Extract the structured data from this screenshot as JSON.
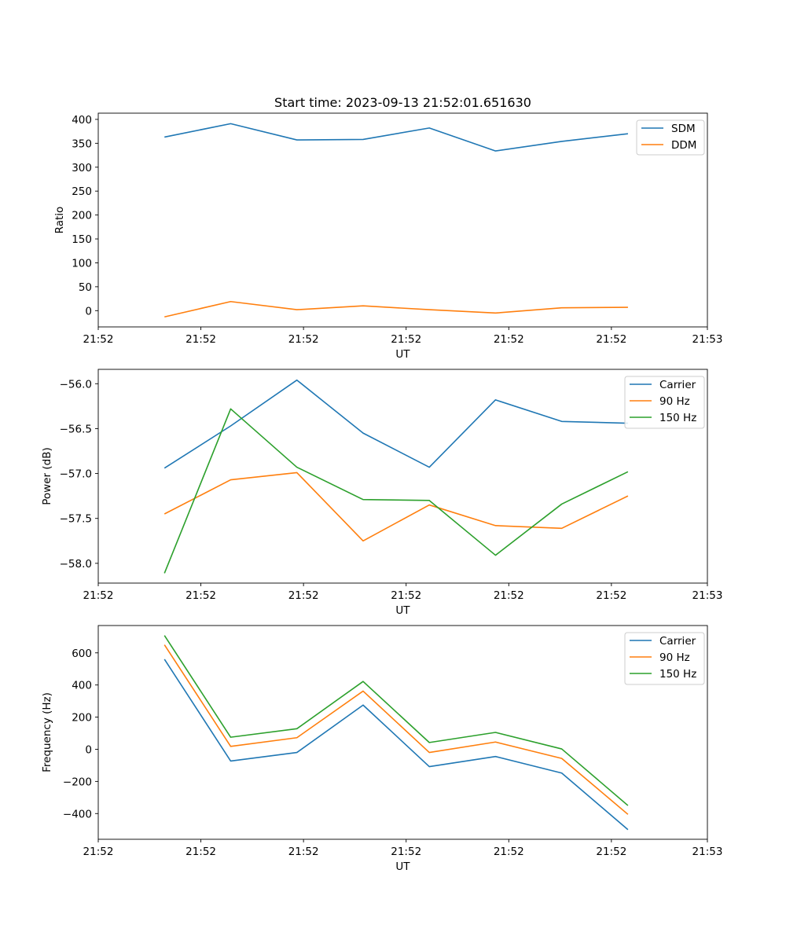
{
  "figure_title": "Start time: 2023-09-13 21:52:01.651630",
  "chart_data": [
    {
      "type": "line",
      "title": "Start time: 2023-09-13 21:52:01.651630",
      "xlabel": "UT",
      "ylabel": "Ratio",
      "x": [
        1,
        2,
        3,
        4,
        5,
        6,
        7,
        8
      ],
      "xlim": [
        0,
        9.2
      ],
      "x_ticks": [
        0,
        1.55,
        3.1,
        4.65,
        6.2,
        7.75,
        9.2
      ],
      "x_tick_labels": [
        "21:52",
        "21:52",
        "21:52",
        "21:52",
        "21:52",
        "21:52",
        "21:53"
      ],
      "ylim": [
        -34,
        413
      ],
      "y_ticks": [
        0,
        50,
        100,
        150,
        200,
        250,
        300,
        350,
        400
      ],
      "y_tick_labels": [
        "0",
        "50",
        "100",
        "150",
        "200",
        "250",
        "300",
        "350",
        "400"
      ],
      "legend_position": "top-right",
      "series": [
        {
          "name": "SDM",
          "color": "#1f77b4",
          "values": [
            363,
            391,
            357,
            358,
            382,
            334,
            354,
            370
          ]
        },
        {
          "name": "DDM",
          "color": "#ff7f0e",
          "values": [
            -13,
            19,
            2,
            10,
            2,
            -5,
            6,
            7
          ]
        }
      ]
    },
    {
      "type": "line",
      "title": "",
      "xlabel": "UT",
      "ylabel": "Power (dB)",
      "x": [
        1,
        2,
        3,
        4,
        5,
        6,
        7,
        8
      ],
      "xlim": [
        0,
        9.2
      ],
      "x_ticks": [
        0,
        1.55,
        3.1,
        4.65,
        6.2,
        7.75,
        9.2
      ],
      "x_tick_labels": [
        "21:52",
        "21:52",
        "21:52",
        "21:52",
        "21:52",
        "21:52",
        "21:53"
      ],
      "ylim": [
        -58.22,
        -55.84
      ],
      "y_ticks": [
        -58.0,
        -57.5,
        -57.0,
        -56.5,
        -56.0
      ],
      "y_tick_labels": [
        "−58.0",
        "−57.5",
        "−57.0",
        "−56.5",
        "−56.0"
      ],
      "legend_position": "top-right",
      "series": [
        {
          "name": "Carrier",
          "color": "#1f77b4",
          "values": [
            -56.94,
            -56.47,
            -55.96,
            -56.55,
            -56.93,
            -56.18,
            -56.42,
            -56.44
          ]
        },
        {
          "name": "90 Hz",
          "color": "#ff7f0e",
          "values": [
            -57.45,
            -57.07,
            -56.99,
            -57.75,
            -57.35,
            -57.58,
            -57.61,
            -57.25
          ]
        },
        {
          "name": "150 Hz",
          "color": "#2ca02c",
          "values": [
            -58.11,
            -56.28,
            -56.93,
            -57.29,
            -57.3,
            -57.91,
            -57.34,
            -56.98
          ]
        }
      ]
    },
    {
      "type": "line",
      "title": "",
      "xlabel": "UT",
      "ylabel": "Frequency (Hz)",
      "x": [
        1,
        2,
        3,
        4,
        5,
        6,
        7,
        8
      ],
      "xlim": [
        0,
        9.2
      ],
      "x_ticks": [
        0,
        1.55,
        3.1,
        4.65,
        6.2,
        7.75,
        9.2
      ],
      "x_tick_labels": [
        "21:52",
        "21:52",
        "21:52",
        "21:52",
        "21:52",
        "21:52",
        "21:53"
      ],
      "ylim": [
        -560,
        770
      ],
      "y_ticks": [
        -400,
        -200,
        0,
        200,
        400,
        600
      ],
      "y_tick_labels": [
        "−400",
        "−200",
        "0",
        "200",
        "400",
        "600"
      ],
      "legend_position": "top-right",
      "series": [
        {
          "name": "Carrier",
          "color": "#1f77b4",
          "values": [
            560,
            -73,
            -20,
            275,
            -108,
            -45,
            -148,
            -500
          ]
        },
        {
          "name": "90 Hz",
          "color": "#ff7f0e",
          "values": [
            650,
            18,
            72,
            362,
            -20,
            45,
            -57,
            -405
          ]
        },
        {
          "name": "150 Hz",
          "color": "#2ca02c",
          "values": [
            708,
            75,
            128,
            422,
            42,
            105,
            2,
            -350
          ]
        }
      ]
    }
  ]
}
